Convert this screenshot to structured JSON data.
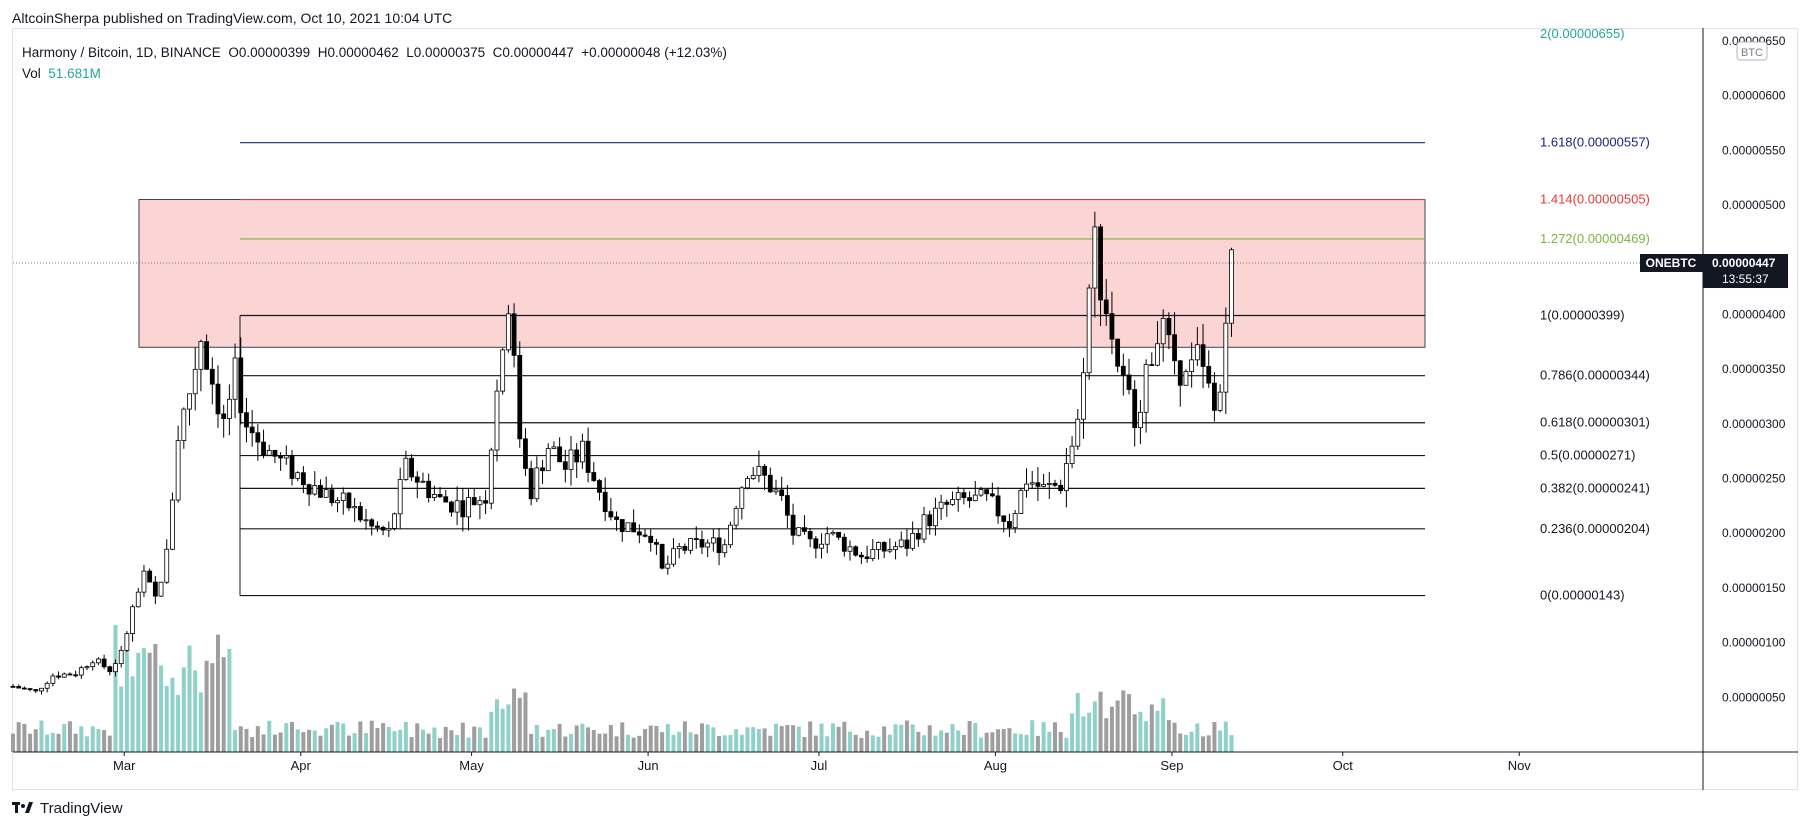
{
  "header": {
    "published_text": "AltcoinSherpa published on TradingView.com, Oct 10, 2021 10:04 UTC"
  },
  "legend": {
    "symbol_text": "Harmony / Bitcoin, 1D, BINANCE",
    "o_label": "O",
    "o_value": "0.00000399",
    "h_label": "H",
    "h_value": "0.00000462",
    "l_label": "L",
    "l_value": "0.00000375",
    "c_label": "C",
    "c_value": "0.00000447",
    "change_text": "+0.00000048 (+12.03%)",
    "vol_label": "Vol",
    "vol_value": "51.681M"
  },
  "price_scale": {
    "currency": "BTC",
    "symbol_badge": "ONEBTC",
    "last_price": "0.00000447",
    "countdown": "13:55:37",
    "colors": {
      "badge_bg": "#131722",
      "up": "#ffffff",
      "down": "#000000"
    }
  },
  "fib_levels": [
    {
      "label": "0(0.00000143)",
      "value": 1.43,
      "color": "#131722"
    },
    {
      "label": "0.236(0.00000204)",
      "value": 2.04,
      "color": "#131722"
    },
    {
      "label": "0.382(0.00000241)",
      "value": 2.41,
      "color": "#131722"
    },
    {
      "label": "0.5(0.00000271)",
      "value": 2.71,
      "color": "#131722"
    },
    {
      "label": "0.618(0.00000301)",
      "value": 3.01,
      "color": "#131722"
    },
    {
      "label": "0.786(0.00000344)",
      "value": 3.44,
      "color": "#131722"
    },
    {
      "label": "1(0.00000399)",
      "value": 3.99,
      "color": "#131722"
    },
    {
      "label": "1.272(0.00000469)",
      "value": 4.69,
      "color": "#7cb342"
    },
    {
      "label": "1.414(0.00000505)",
      "value": 5.05,
      "color": "#e53935"
    },
    {
      "label": "1.618(0.00000557)",
      "value": 5.57,
      "color": "#1a237e"
    },
    {
      "label": "2(0.00000655)",
      "value": 6.55,
      "color": "#26a69a"
    }
  ],
  "resistance_zone": {
    "top": 5.05,
    "bottom": 3.7,
    "fill": "#fbd5d3",
    "stroke": "#131722"
  },
  "chart_data": {
    "type": "candlestick",
    "title": "Harmony / Bitcoin, 1D, BINANCE",
    "y_unit_scale": "1e-6 BTC",
    "ylim": [
      0,
      6.6
    ],
    "y_ticks": [
      {
        "value": 0.5,
        "label": "0.00000050"
      },
      {
        "value": 1.0,
        "label": "0.00000100"
      },
      {
        "value": 1.5,
        "label": "0.00000150"
      },
      {
        "value": 2.0,
        "label": "0.00000200"
      },
      {
        "value": 2.5,
        "label": "0.00000250"
      },
      {
        "value": 3.0,
        "label": "0.00000300"
      },
      {
        "value": 3.5,
        "label": "0.00000350"
      },
      {
        "value": 4.0,
        "label": "0.00000400"
      },
      {
        "value": 4.5,
        "label": "0.00000450"
      },
      {
        "value": 5.0,
        "label": "0.00000500"
      },
      {
        "value": 5.5,
        "label": "0.00000550"
      },
      {
        "value": 6.0,
        "label": "0.00000600"
      },
      {
        "value": 6.5,
        "label": "0.00000650"
      }
    ],
    "x_ticks": [
      {
        "day": 0,
        "label": "Mar"
      },
      {
        "day": 31,
        "label": "Apr"
      },
      {
        "day": 61,
        "label": "May"
      },
      {
        "day": 92,
        "label": "Jun"
      },
      {
        "day": 122,
        "label": "Jul"
      },
      {
        "day": 153,
        "label": "Aug"
      },
      {
        "day": 184,
        "label": "Sep"
      },
      {
        "day": 214,
        "label": "Oct"
      },
      {
        "day": 245,
        "label": "Nov"
      }
    ],
    "x_domain_days": [
      -9,
      272
    ],
    "anchors": [
      [
        -9,
        0.6
      ],
      [
        -5,
        0.55
      ],
      [
        -2,
        0.7
      ],
      [
        2,
        0.72
      ],
      [
        5,
        0.85
      ],
      [
        8,
        0.75
      ],
      [
        10,
        0.9
      ],
      [
        12,
        1.3
      ],
      [
        14,
        1.6
      ],
      [
        16,
        1.4
      ],
      [
        18,
        1.8
      ],
      [
        20,
        2.9
      ],
      [
        22,
        3.3
      ],
      [
        24,
        3.8
      ],
      [
        26,
        3.4
      ],
      [
        28,
        3.0
      ],
      [
        30,
        3.45
      ],
      [
        32,
        3.0
      ],
      [
        35,
        2.8
      ],
      [
        38,
        2.65
      ],
      [
        42,
        2.5
      ],
      [
        46,
        2.35
      ],
      [
        50,
        2.25
      ],
      [
        54,
        2.05
      ],
      [
        57,
        2.0
      ],
      [
        60,
        2.6
      ],
      [
        63,
        2.45
      ],
      [
        66,
        2.3
      ],
      [
        70,
        2.25
      ],
      [
        74,
        2.35
      ],
      [
        76,
        3.3
      ],
      [
        78,
        4.15
      ],
      [
        80,
        2.9
      ],
      [
        82,
        2.4
      ],
      [
        85,
        2.8
      ],
      [
        88,
        2.6
      ],
      [
        91,
        2.75
      ],
      [
        94,
        2.4
      ],
      [
        97,
        2.1
      ],
      [
        100,
        2.05
      ],
      [
        103,
        2.0
      ],
      [
        105,
        1.65
      ],
      [
        108,
        1.85
      ],
      [
        112,
        1.9
      ],
      [
        116,
        1.9
      ],
      [
        118,
        2.3
      ],
      [
        120,
        2.6
      ],
      [
        123,
        2.5
      ],
      [
        126,
        2.3
      ],
      [
        128,
        2.0
      ],
      [
        131,
        1.9
      ],
      [
        134,
        2.0
      ],
      [
        137,
        1.9
      ],
      [
        140,
        1.8
      ],
      [
        144,
        1.85
      ],
      [
        148,
        1.9
      ],
      [
        151,
        2.1
      ],
      [
        155,
        2.25
      ],
      [
        158,
        2.3
      ],
      [
        162,
        2.3
      ],
      [
        166,
        2.1
      ],
      [
        169,
        2.5
      ],
      [
        172,
        2.4
      ],
      [
        175,
        2.45
      ],
      [
        178,
        3.0
      ],
      [
        180,
        4.2
      ],
      [
        181,
        4.7
      ],
      [
        182,
        4.3
      ],
      [
        184,
        3.8
      ],
      [
        186,
        3.35
      ],
      [
        188,
        3.1
      ],
      [
        190,
        3.4
      ],
      [
        192,
        3.9
      ],
      [
        194,
        3.7
      ],
      [
        197,
        3.4
      ],
      [
        199,
        3.6
      ],
      [
        201,
        3.3
      ],
      [
        202,
        3.1
      ],
      [
        203,
        3.3
      ],
      [
        204,
        4.1
      ],
      [
        205,
        4.47
      ]
    ],
    "volume_series": "daily bars, green on up days, grey on down days; peaks near late March and mid September"
  }
}
